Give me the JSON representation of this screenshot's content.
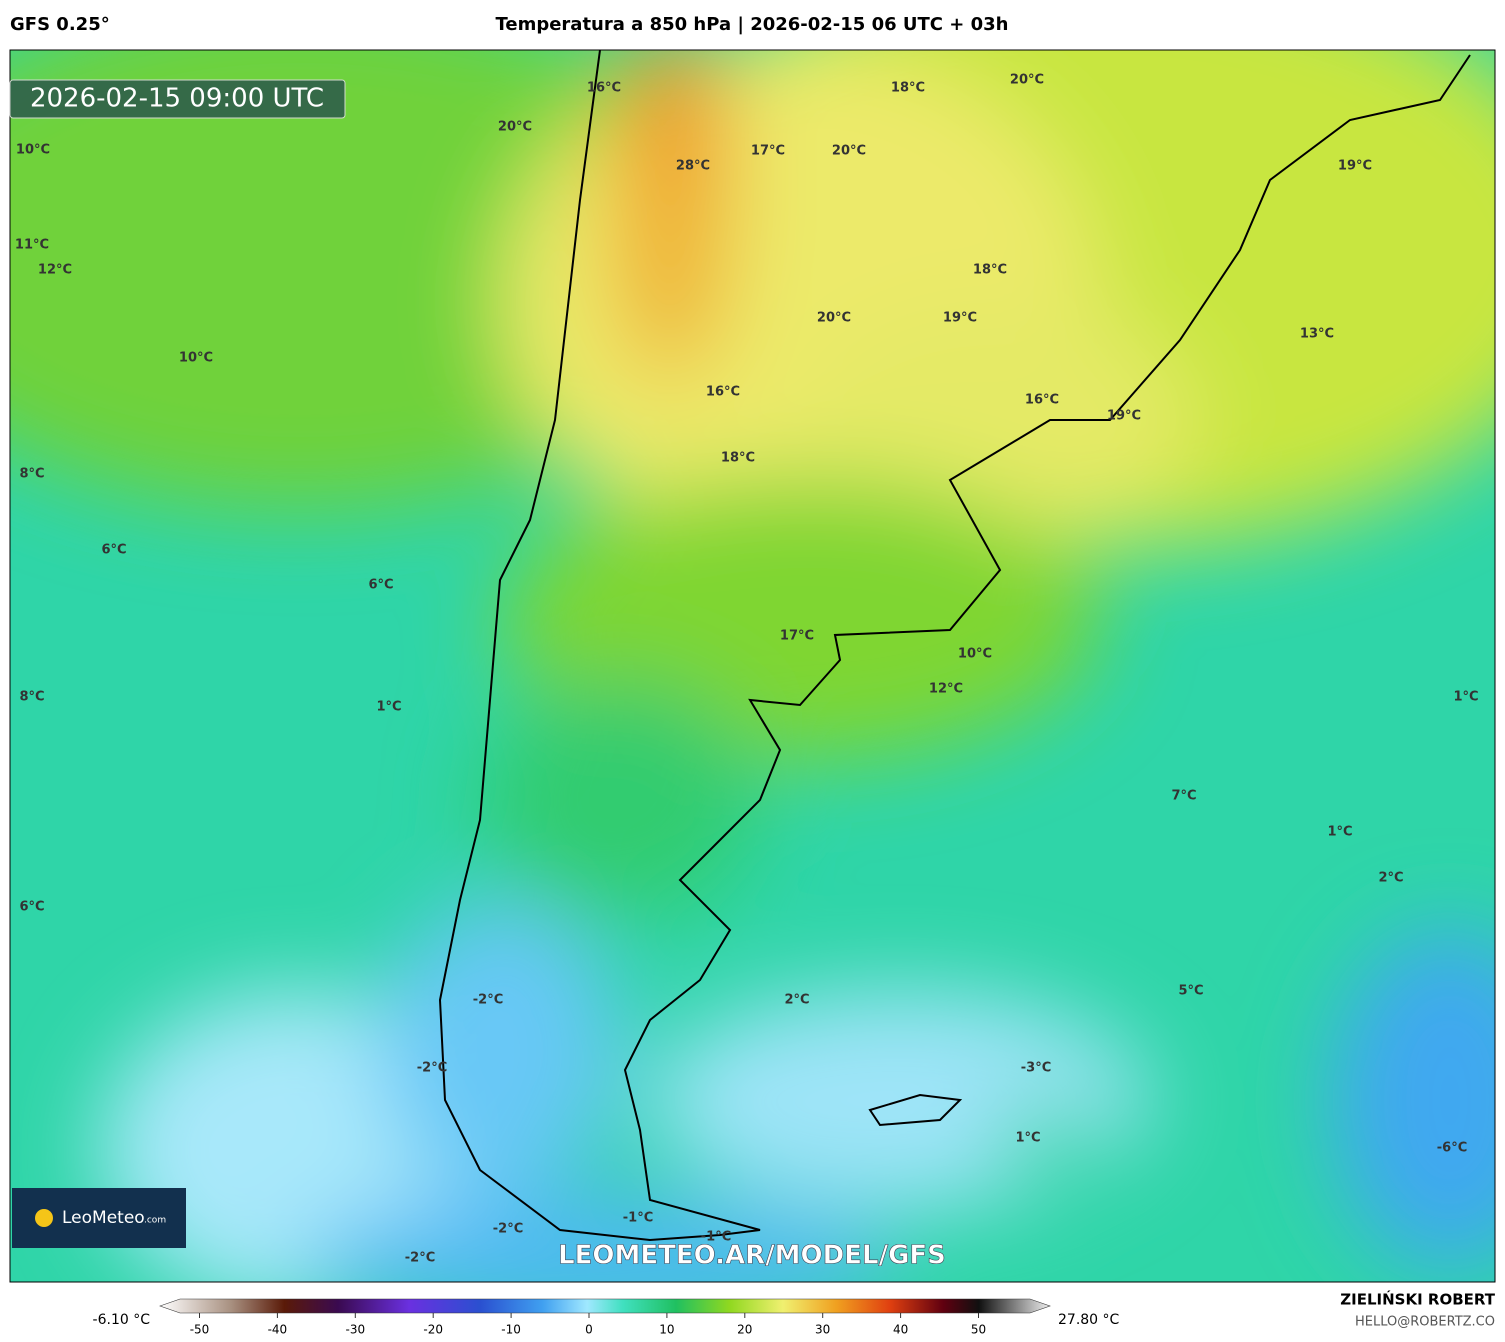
{
  "header": {
    "model": "GFS 0.25°",
    "title": "Temperatura a 850 hPa | 2026-02-15 06 UTC + 03h"
  },
  "map": {
    "valid_time": "2026-02-15 09:00 UTC",
    "labels": [
      "16°C",
      "20°C",
      "10°C",
      "18°C",
      "20°C",
      "17°C",
      "20°C",
      "28°C",
      "19°C",
      "11°C",
      "12°C",
      "18°C",
      "20°C",
      "19°C",
      "13°C",
      "10°C",
      "16°C",
      "16°C",
      "19°C",
      "18°C",
      "8°C",
      "6°C",
      "6°C",
      "17°C",
      "10°C",
      "12°C",
      "8°C",
      "1°C",
      "1°C",
      "7°C",
      "1°C",
      "2°C",
      "6°C",
      "5°C",
      "2°C",
      "-2°C",
      "-2°C",
      "-3°C",
      "1°C",
      "-6°C",
      "-2°C",
      "-1°C",
      "-2°C",
      "-1°C"
    ],
    "watermark": "LEOMETEO.AR/MODEL/GFS",
    "logo": {
      "name": "LeoMeteo",
      "suffix": ".com"
    }
  },
  "colorbar": {
    "min_label": "-6.10 °C",
    "max_label": "27.80 °C",
    "ticks": [
      -50,
      -40,
      -30,
      -20,
      -10,
      0,
      10,
      20,
      30,
      40,
      50
    ]
  },
  "footer": {
    "author": "ZIELIŃSKI ROBERT",
    "contact": "HELLO@ROBERTZ.CO"
  }
}
